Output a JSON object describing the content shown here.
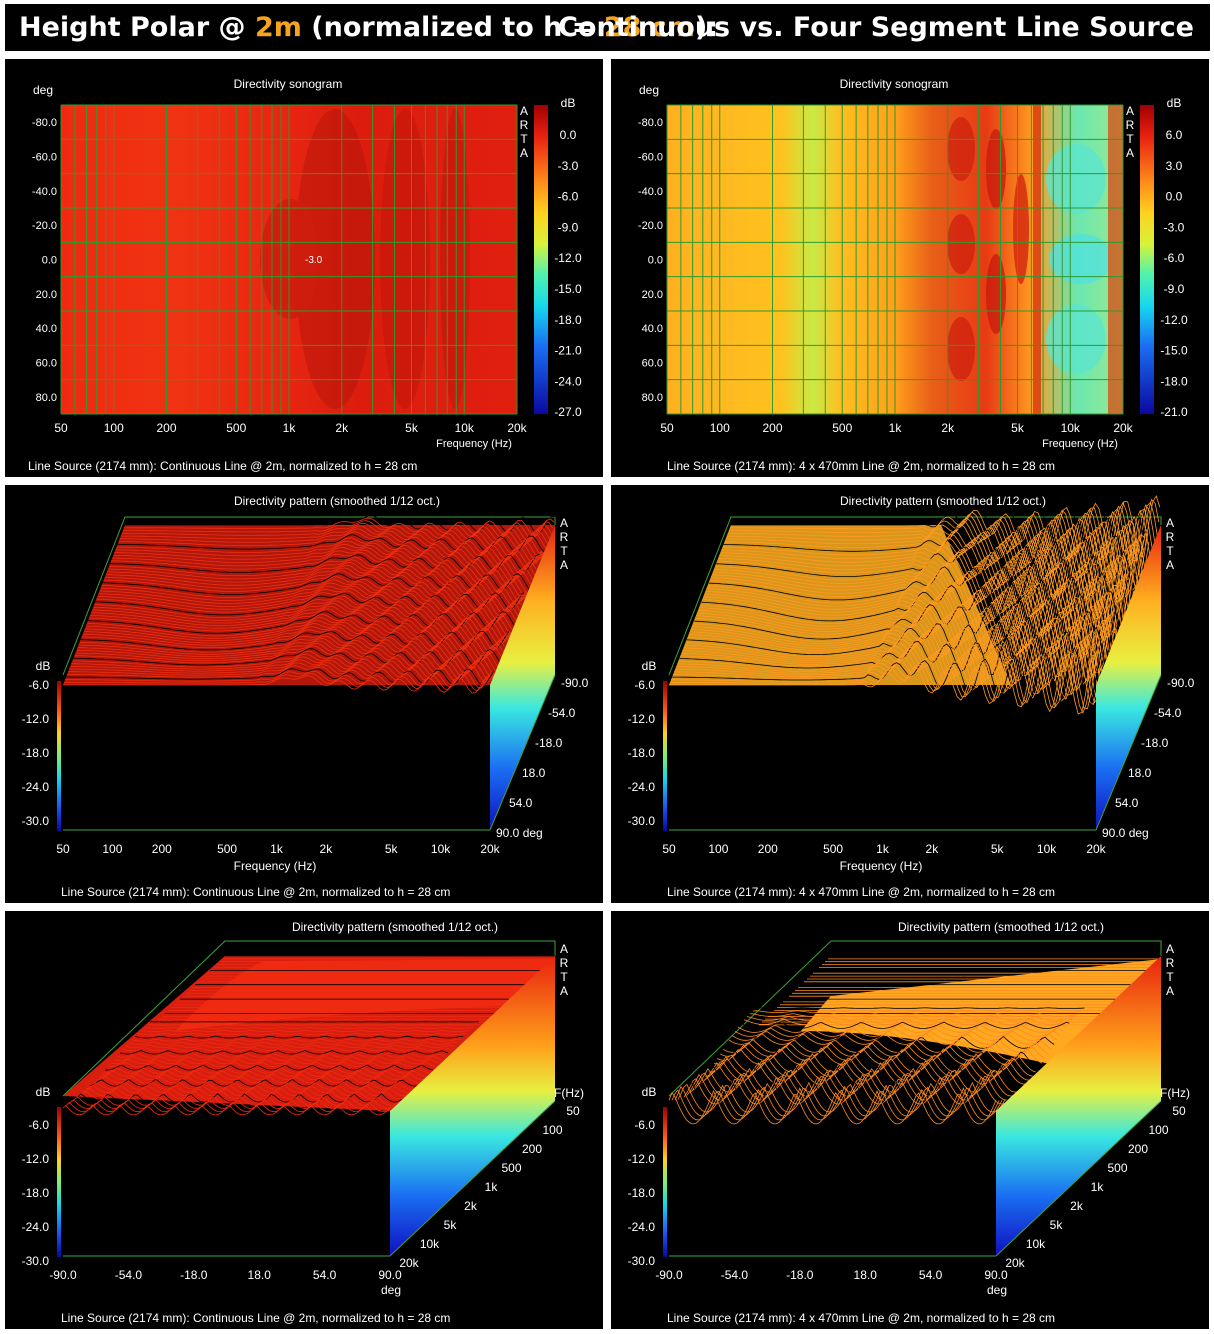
{
  "header": {
    "part1": "Height Polar @ ",
    "h1": "2m",
    "part2": " (normalized to h = ",
    "h2": "28 cm",
    "part3": "):",
    "right": "Continuous vs. Four Segment Line Source"
  },
  "arta": [
    "A",
    "R",
    "T",
    "A"
  ],
  "panels": {
    "p1": {
      "title": "Directivity sonogram",
      "caption": "Line Source (2174 mm): Continuous Line @ 2m, normalized to h = 28 cm",
      "yunit": "deg",
      "xlabel": "Frequency (Hz)",
      "cbunit": "dB",
      "xticks": [
        "50",
        "100",
        "200",
        "500",
        "1k",
        "2k",
        "5k",
        "10k",
        "20k"
      ],
      "yticks": [
        "-80.0",
        "-60.0",
        "-40.0",
        "-20.0",
        "0.0",
        "20.0",
        "40.0",
        "60.0",
        "80.0"
      ],
      "cbticks": [
        "0.0",
        "-3.0",
        "-6.0",
        "-9.0",
        "-12.0",
        "-15.0",
        "-18.0",
        "-21.0",
        "-24.0",
        "-27.0"
      ],
      "annotation": "-3.0"
    },
    "p2": {
      "title": "Directivity sonogram",
      "caption": "Line Source (2174 mm): 4 x 470mm Line @ 2m, normalized to h = 28 cm",
      "yunit": "deg",
      "xlabel": "Frequency (Hz)",
      "cbunit": "dB",
      "xticks": [
        "50",
        "100",
        "200",
        "500",
        "1k",
        "2k",
        "5k",
        "10k",
        "20k"
      ],
      "yticks": [
        "-80.0",
        "-60.0",
        "-40.0",
        "-20.0",
        "0.0",
        "20.0",
        "40.0",
        "60.0",
        "80.0"
      ],
      "cbticks": [
        "6.0",
        "3.0",
        "0.0",
        "-3.0",
        "-6.0",
        "-9.0",
        "-12.0",
        "-15.0",
        "-18.0",
        "-21.0"
      ]
    },
    "p3": {
      "title": "Directivity pattern (smoothed 1/12 oct.)",
      "caption": "Line Source (2174 mm): Continuous Line @ 2m, normalized to h = 28 cm",
      "dbunit": "dB",
      "xlabel": "Frequency (Hz)",
      "xticks": [
        "50",
        "100",
        "200",
        "500",
        "1k",
        "2k",
        "5k",
        "10k",
        "20k"
      ],
      "dbticks": [
        "-6.0",
        "-12.0",
        "-18.0",
        "-24.0",
        "-30.0"
      ],
      "depthticks": [
        "-90.0",
        "-54.0",
        "-18.0",
        "18.0",
        "54.0",
        "90.0 deg"
      ]
    },
    "p4": {
      "title": "Directivity pattern (smoothed 1/12 oct.)",
      "caption": "Line Source (2174 mm): 4 x 470mm Line @ 2m, normalized to h = 28 cm",
      "dbunit": "dB",
      "xlabel": "Frequency (Hz)",
      "xticks": [
        "50",
        "100",
        "200",
        "500",
        "1k",
        "2k",
        "5k",
        "10k",
        "20k"
      ],
      "dbticks": [
        "-6.0",
        "-12.0",
        "-18.0",
        "-24.0",
        "-30.0"
      ],
      "depthticks": [
        "-90.0",
        "-54.0",
        "-18.0",
        "18.0",
        "54.0",
        "90.0 deg"
      ]
    },
    "p5": {
      "title": "Directivity pattern (smoothed 1/12 oct.)",
      "caption": "Line Source (2174 mm): Continuous Line @ 2m, normalized to h = 28 cm",
      "dbunit": "dB",
      "xunit": "deg",
      "depthunit": "F(Hz)",
      "xticks": [
        "-90.0",
        "-54.0",
        "-18.0",
        "18.0",
        "54.0",
        "90.0"
      ],
      "dbticks": [
        "-6.0",
        "-12.0",
        "-18.0",
        "-24.0",
        "-30.0"
      ],
      "depthticks": [
        "50",
        "100",
        "200",
        "500",
        "1k",
        "2k",
        "5k",
        "10k",
        "20k"
      ]
    },
    "p6": {
      "title": "Directivity pattern (smoothed 1/12 oct.)",
      "caption": "Line Source (2174 mm): 4 x 470mm Line @ 2m, normalized to h = 28 cm",
      "dbunit": "dB",
      "xunit": "deg",
      "depthunit": "F(Hz)",
      "xticks": [
        "-90.0",
        "-54.0",
        "-18.0",
        "18.0",
        "54.0",
        "90.0"
      ],
      "dbticks": [
        "-6.0",
        "-12.0",
        "-18.0",
        "-24.0",
        "-30.0"
      ],
      "depthticks": [
        "50",
        "100",
        "200",
        "500",
        "1k",
        "2k",
        "5k",
        "10k",
        "20k"
      ]
    }
  },
  "chart_data": [
    {
      "type": "heatmap",
      "title": "Directivity sonogram",
      "xlabel": "Frequency (Hz)",
      "ylabel": "deg",
      "xlim": [
        50,
        20000
      ],
      "xscale": "log",
      "ylim": [
        -90,
        90
      ],
      "zlim": [
        -27,
        0
      ],
      "zunit": "dB",
      "annotations": [
        {
          "x": 1200,
          "y": 0,
          "text": "-3.0"
        }
      ]
    },
    {
      "type": "heatmap",
      "title": "Directivity sonogram",
      "xlabel": "Frequency (Hz)",
      "ylabel": "deg",
      "xlim": [
        50,
        20000
      ],
      "xscale": "log",
      "ylim": [
        -90,
        90
      ],
      "zlim": [
        -21,
        6
      ],
      "zunit": "dB"
    },
    {
      "type": "area",
      "title": "Directivity pattern (smoothed 1/12 oct.)",
      "xlabel": "Frequency (Hz)",
      "xlim": [
        50,
        20000
      ],
      "zlim": [
        -30,
        0
      ],
      "depth": "deg",
      "depthlim": [
        -90,
        90
      ]
    },
    {
      "type": "area",
      "title": "Directivity pattern (smoothed 1/12 oct.)",
      "xlabel": "Frequency (Hz)",
      "xlim": [
        50,
        20000
      ],
      "zlim": [
        -30,
        0
      ],
      "depth": "deg",
      "depthlim": [
        -90,
        90
      ]
    },
    {
      "type": "area",
      "title": "Directivity pattern (smoothed 1/12 oct.)",
      "xlabel": "deg",
      "xlim": [
        -90,
        90
      ],
      "zlim": [
        -30,
        0
      ],
      "depth": "F(Hz)",
      "depthlim": [
        50,
        20000
      ]
    },
    {
      "type": "area",
      "title": "Directivity pattern (smoothed 1/12 oct.)",
      "xlabel": "deg",
      "xlim": [
        -90,
        90
      ],
      "zlim": [
        -30,
        0
      ],
      "depth": "F(Hz)",
      "depthlim": [
        50,
        20000
      ]
    }
  ],
  "colors": {
    "red": "#e8230f",
    "orange": "#ffad1f",
    "green_grid": "#2e9a2e",
    "frame": "#3ba33b"
  }
}
